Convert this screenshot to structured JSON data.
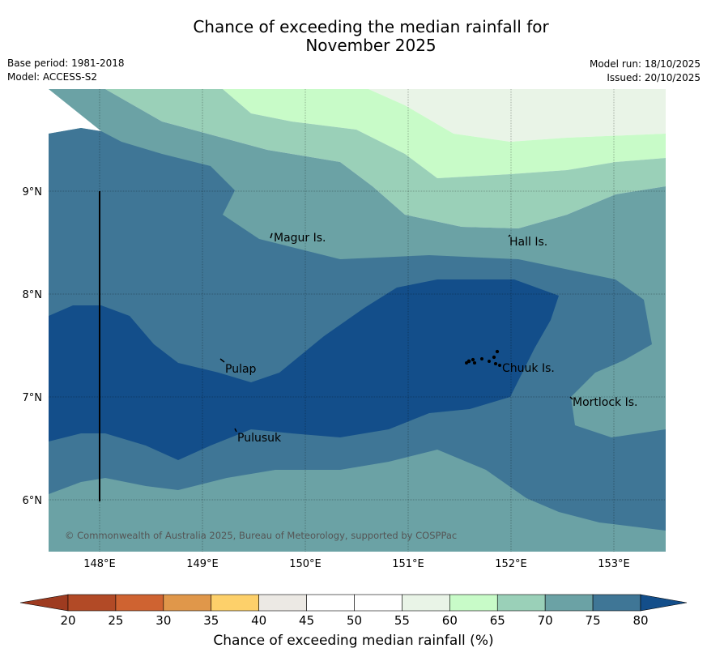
{
  "title": {
    "line1": "Chance of exceeding the median rainfall for",
    "line2": "November 2025"
  },
  "meta_left": {
    "base_period": "Base period: 1981-2018",
    "model": "Model: ACCESS-S2"
  },
  "meta_right": {
    "model_run": "Model run: 18/10/2025",
    "issued": "Issued: 20/10/2025"
  },
  "map": {
    "lon_ticks": [
      "148°E",
      "149°E",
      "150°E",
      "151°E",
      "152°E",
      "153°E"
    ],
    "lat_ticks": [
      "9°N",
      "8°N",
      "7°N",
      "6°N"
    ],
    "places": [
      {
        "name": "Magur Is."
      },
      {
        "name": "Hall Is."
      },
      {
        "name": "Pulap"
      },
      {
        "name": "Chuuk Is."
      },
      {
        "name": "Mortlock Is."
      },
      {
        "name": "Pulusuk"
      }
    ],
    "copyright": "© Commonwealth of Australia 2025, Bureau of Meteorology, supported by COSPPac"
  },
  "legend": {
    "title": "Chance of exceeding median rainfall (%)",
    "tick_labels": [
      "20",
      "25",
      "30",
      "35",
      "40",
      "45",
      "50",
      "55",
      "60",
      "65",
      "70",
      "75",
      "80"
    ],
    "colors": [
      "#b24a26",
      "#cf6331",
      "#e0974a",
      "#fdd06a",
      "#ece9e4",
      "#ffffff",
      "#ffffff",
      "#e9f4e7",
      "#c8fbc8",
      "#9ad0b8",
      "#6ba2a5",
      "#3f7696"
    ],
    "under_color": "#9e3b20",
    "over_color": "#134e8a"
  },
  "colors": {
    "c60": "#e9f4e7",
    "c65": "#c8fbc8",
    "c70": "#9ad0b8",
    "c75": "#6ba2a5",
    "c80": "#3f7696",
    "c85": "#134e8a"
  }
}
